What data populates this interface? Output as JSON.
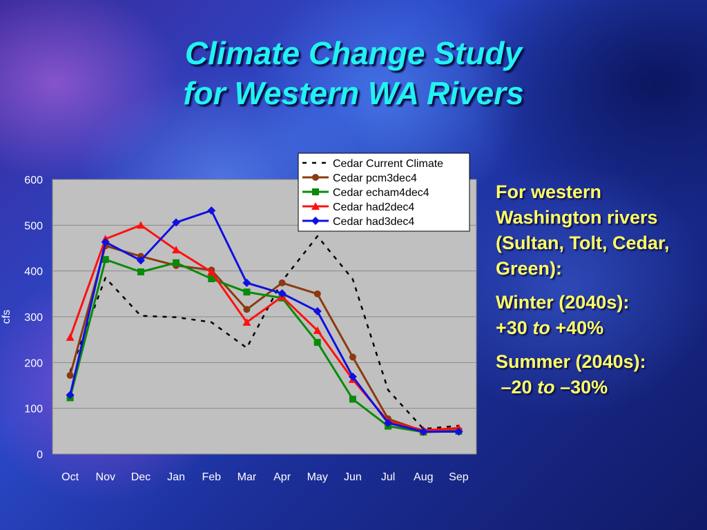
{
  "slide": {
    "title_line1": "Climate Change Study",
    "title_line2": "for Western WA Rivers",
    "text1": "For western Washington rivers (Sultan, Tolt, Cedar, Green):",
    "winter_label": "Winter (2040s):",
    "winter_from": "+30",
    "winter_to_word": "to",
    "winter_to": "+40%",
    "summer_label": "Summer (2040s):",
    "summer_from": "–20",
    "summer_to_word": "to",
    "summer_to": "–30%"
  },
  "chart_data": {
    "type": "line",
    "title": "",
    "xlabel": "",
    "ylabel": "cfs",
    "ylim": [
      0,
      600
    ],
    "yticks": [
      0,
      100,
      200,
      300,
      400,
      500,
      600
    ],
    "grid": true,
    "legend_position": "top-right",
    "categories": [
      "Oct",
      "Nov",
      "Dec",
      "Jan",
      "Feb",
      "Mar",
      "Apr",
      "May",
      "Jun",
      "Jul",
      "Aug",
      "Sep"
    ],
    "series": [
      {
        "name": "Cedar Current Climate",
        "color": "#000000",
        "style": "dashed",
        "marker": "none",
        "values": [
          180,
          385,
          302,
          299,
          288,
          232,
          378,
          476,
          382,
          140,
          55,
          62
        ]
      },
      {
        "name": "Cedar pcm3dec4",
        "color": "#8b3a10",
        "style": "solid",
        "marker": "circle",
        "values": [
          172,
          455,
          432,
          412,
          402,
          316,
          374,
          350,
          212,
          77,
          50,
          52
        ]
      },
      {
        "name": "Cedar echam4dec4",
        "color": "#0a8a0a",
        "style": "solid",
        "marker": "square",
        "values": [
          123,
          425,
          398,
          418,
          383,
          354,
          341,
          244,
          120,
          61,
          48,
          50
        ]
      },
      {
        "name": "Cedar had2dec4",
        "color": "#ff1010",
        "style": "solid",
        "marker": "triangle",
        "values": [
          255,
          470,
          500,
          446,
          398,
          288,
          344,
          270,
          163,
          72,
          52,
          57
        ]
      },
      {
        "name": "Cedar had3dec4",
        "color": "#1010e0",
        "style": "solid",
        "marker": "diamond",
        "values": [
          129,
          463,
          423,
          506,
          532,
          374,
          351,
          312,
          169,
          68,
          49,
          49
        ]
      }
    ]
  }
}
